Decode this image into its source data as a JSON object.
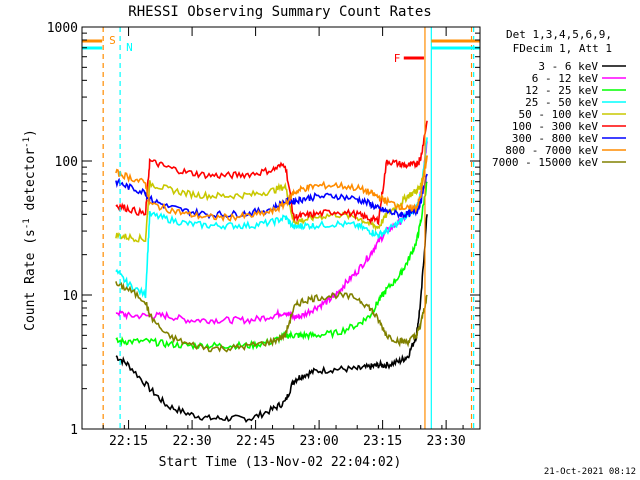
{
  "chart_data": {
    "type": "line",
    "title": "RHESSI Observing Summary Count Rates",
    "xlabel": "Start Time (13-Nov-02 22:04:02)",
    "ylabel_main": "Count Rate (s",
    "ylabel_sup1": "-1",
    "ylabel_mid": " detector",
    "ylabel_sup2": "-1",
    "ylabel_end": ")",
    "y_scale": "log",
    "ylim": [
      1,
      1000
    ],
    "xlim_minutes": [
      0,
      94
    ],
    "x_ticks": [
      {
        "label": "22:15",
        "minute": 11
      },
      {
        "label": "22:30",
        "minute": 26
      },
      {
        "label": "22:45",
        "minute": 41
      },
      {
        "label": "23:00",
        "minute": 56
      },
      {
        "label": "23:15",
        "minute": 71
      },
      {
        "label": "23:30",
        "minute": 86
      }
    ],
    "y_ticks": [
      {
        "label": "1",
        "value": 1
      },
      {
        "label": "10",
        "value": 10
      },
      {
        "label": "100",
        "value": 100
      },
      {
        "label": "1000",
        "value": 1000
      }
    ],
    "legend_header": [
      "Det 1,3,4,5,6,9,",
      "FDecim 1, Att 1"
    ],
    "series": [
      {
        "name": "3 - 6 keV",
        "color": "#000000",
        "x": [
          8,
          11,
          16,
          20,
          25,
          30,
          35,
          40,
          45,
          48,
          50,
          52,
          55,
          60,
          65,
          68,
          70,
          72,
          75,
          77,
          79,
          80,
          81.5
        ],
        "y": [
          3.5,
          3,
          2,
          1.5,
          1.3,
          1.2,
          1.2,
          1.2,
          1.4,
          1.6,
          2.3,
          2.5,
          2.7,
          2.8,
          2.8,
          2.9,
          3,
          3,
          3.2,
          3.5,
          5,
          9,
          40
        ]
      },
      {
        "name": "6 - 12 keV",
        "color": "#ff00ff",
        "x": [
          8,
          11,
          16,
          20,
          25,
          30,
          35,
          40,
          45,
          48,
          50,
          52,
          55,
          58,
          60,
          62,
          65,
          68,
          70,
          72,
          75,
          77,
          79,
          80,
          81.5
        ],
        "y": [
          7.5,
          7,
          7,
          7,
          6.5,
          6.5,
          6.5,
          6.5,
          7,
          7.5,
          6.8,
          7,
          8,
          9,
          10,
          12,
          15,
          20,
          25,
          30,
          35,
          40,
          45,
          60,
          140
        ]
      },
      {
        "name": "12 - 25 keV",
        "color": "#00ff00",
        "x": [
          8,
          11,
          16,
          20,
          25,
          30,
          35,
          40,
          45,
          48,
          50,
          52,
          55,
          60,
          65,
          68,
          70,
          72,
          75,
          77,
          79,
          80,
          81.5
        ],
        "y": [
          4.5,
          4.5,
          4.5,
          4.3,
          4.2,
          4.2,
          4.2,
          4.2,
          4.5,
          5,
          5,
          5,
          5,
          5.2,
          6,
          7,
          9,
          11,
          14,
          18,
          25,
          35,
          70
        ]
      },
      {
        "name": "25 - 50 keV",
        "color": "#00ffff",
        "x": [
          8,
          11,
          15,
          16,
          20,
          25,
          30,
          35,
          40,
          45,
          48,
          50,
          52,
          55,
          60,
          65,
          68,
          70,
          72,
          75,
          77,
          79,
          80,
          81.5
        ],
        "y": [
          15,
          12,
          10,
          40,
          37,
          34,
          33,
          33,
          33,
          35,
          38,
          32,
          33,
          33,
          34,
          33,
          30,
          28,
          30,
          35,
          40,
          45,
          55,
          150
        ]
      },
      {
        "name": "50 - 100 keV",
        "color": "#c8c800",
        "x": [
          8,
          11,
          15,
          16,
          20,
          25,
          30,
          35,
          40,
          45,
          48,
          50,
          52,
          55,
          60,
          65,
          68,
          70,
          72,
          75,
          77,
          79,
          80,
          81.5
        ],
        "y": [
          28,
          27,
          26,
          68,
          62,
          57,
          55,
          55,
          56,
          60,
          65,
          35,
          36,
          38,
          40,
          38,
          34,
          32,
          40,
          48,
          55,
          60,
          65,
          110
        ]
      },
      {
        "name": "100 - 300 keV",
        "color": "#ff0000",
        "x": [
          8,
          11,
          15,
          16,
          20,
          25,
          30,
          35,
          40,
          45,
          48,
          50,
          52,
          55,
          60,
          65,
          68,
          70,
          72,
          75,
          77,
          79,
          80,
          81.5
        ],
        "y": [
          47,
          44,
          40,
          100,
          90,
          82,
          78,
          78,
          80,
          86,
          95,
          38,
          39,
          40,
          42,
          40,
          37,
          36,
          100,
          95,
          92,
          95,
          105,
          200
        ]
      },
      {
        "name": "300 - 800 keV",
        "color": "#0000ff",
        "x": [
          8,
          11,
          15,
          16,
          20,
          25,
          30,
          35,
          40,
          45,
          48,
          50,
          52,
          55,
          60,
          65,
          68,
          70,
          72,
          75,
          77,
          79,
          80,
          81.5
        ],
        "y": [
          70,
          64,
          58,
          52,
          46,
          42,
          40,
          40,
          41,
          44,
          50,
          50,
          52,
          54,
          55,
          52,
          48,
          44,
          42,
          40,
          40,
          42,
          50,
          80
        ]
      },
      {
        "name": "800 - 7000 keV",
        "color": "#ff8c00",
        "x": [
          8,
          11,
          15,
          16,
          20,
          25,
          30,
          35,
          40,
          45,
          48,
          50,
          52,
          55,
          60,
          65,
          68,
          70,
          72,
          75,
          77,
          79,
          80,
          81.5
        ],
        "y": [
          82,
          76,
          68,
          48,
          44,
          40,
          38,
          38,
          39,
          42,
          48,
          58,
          62,
          65,
          66,
          63,
          58,
          54,
          50,
          46,
          44,
          45,
          55,
          110
        ]
      },
      {
        "name": "7000 - 15000 keV",
        "color": "#808000",
        "x": [
          8,
          11,
          15,
          16,
          20,
          25,
          30,
          35,
          40,
          45,
          48,
          50,
          52,
          55,
          60,
          65,
          68,
          70,
          72,
          75,
          77,
          79,
          80,
          81.5
        ],
        "y": [
          12,
          11,
          9,
          7,
          5,
          4.3,
          4,
          4,
          4.2,
          4.5,
          5,
          8,
          9,
          9.5,
          10,
          9.5,
          8,
          6.5,
          5,
          4.5,
          4.5,
          5,
          6,
          10
        ]
      }
    ],
    "flags": [
      {
        "label": "S",
        "color": "#ff8c00",
        "start": 0,
        "end": 5
      },
      {
        "label": "N",
        "color": "#00ffff",
        "start": 0,
        "end": 5
      },
      {
        "label": "F",
        "color": "#ff0000",
        "start": 76,
        "end": 81
      }
    ],
    "vertical_markers": [
      {
        "minute": 5,
        "color": "#ff8c00",
        "style": "dashed"
      },
      {
        "minute": 9,
        "color": "#00ffff",
        "style": "dashed"
      },
      {
        "minute": 81,
        "color": "#ff8c00",
        "style": "solid"
      },
      {
        "minute": 82.5,
        "color": "#00ffff",
        "style": "solid"
      },
      {
        "minute": 92,
        "color": "#ff8c00",
        "style": "dashed"
      },
      {
        "minute": 92.5,
        "color": "#00ffff",
        "style": "dashed"
      }
    ],
    "timestamp": "21-Oct-2021 08:12"
  }
}
